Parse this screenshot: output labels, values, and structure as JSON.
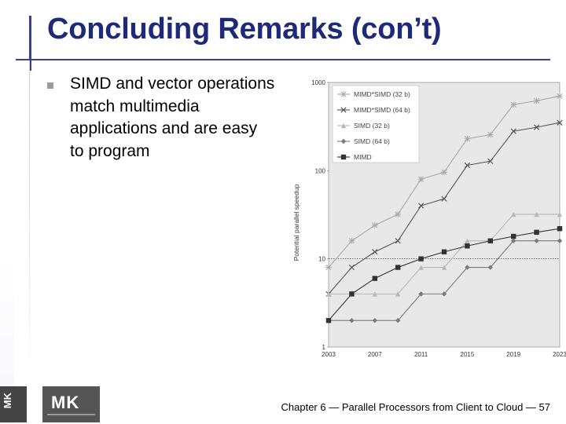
{
  "slide": {
    "title": "Concluding Remarks (con’t)",
    "bullets": [
      "SIMD and vector operations match multimedia applications and are easy to program"
    ],
    "footer": "Chapter 6 — Parallel Processors from Client to Cloud — 57",
    "logo_left": "MK",
    "logo_right": "MK"
  },
  "chart_data": {
    "type": "line",
    "title": "",
    "xlabel": "",
    "ylabel": "Potential parallel speedup",
    "y_scale": "log",
    "ylim": [
      1,
      1000
    ],
    "y_ticks": [
      "1",
      "10",
      "100",
      "1000"
    ],
    "x": [
      "2003",
      "2005",
      "2007",
      "2009",
      "2011",
      "2013",
      "2015",
      "2017",
      "2019",
      "2021",
      "2023"
    ],
    "x_tick_labels": [
      "2003",
      "2007",
      "2011",
      "2015",
      "2019",
      "2023"
    ],
    "reference_line": 10,
    "legend_position": "top-right",
    "series": [
      {
        "name": "MIMD*SIMD (32 b)",
        "marker": "asterisk",
        "color": "#a8a8a8",
        "values": [
          8,
          16,
          24,
          32,
          80,
          96,
          230,
          256,
          560,
          620,
          700
        ]
      },
      {
        "name": "MIMD*SIMD (64 b)",
        "marker": "x",
        "color": "#555555",
        "values": [
          4,
          8,
          12,
          16,
          40,
          48,
          115,
          128,
          280,
          310,
          350
        ]
      },
      {
        "name": "SIMD (32 b)",
        "marker": "triangle",
        "color": "#b8b8b8",
        "values": [
          4,
          4,
          4,
          4,
          8,
          8,
          16,
          16,
          32,
          32,
          32
        ]
      },
      {
        "name": "SIMD (64 b)",
        "marker": "diamond",
        "color": "#7a7a7a",
        "values": [
          2,
          2,
          2,
          2,
          4,
          4,
          8,
          8,
          16,
          16,
          16
        ]
      },
      {
        "name": "MIMD",
        "marker": "square",
        "color": "#333333",
        "values": [
          2,
          4,
          6,
          8,
          10,
          12,
          14,
          16,
          18,
          20,
          22
        ]
      }
    ]
  }
}
